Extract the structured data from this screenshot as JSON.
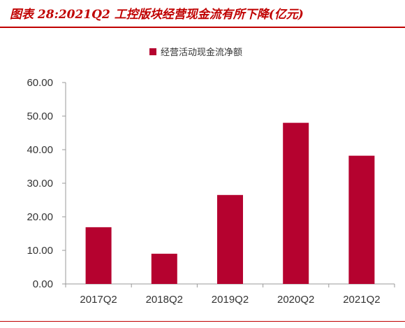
{
  "header": {
    "title": "图表 28:2021Q2 工控版块经营现金流有所下降(亿元)"
  },
  "chart_data": {
    "type": "bar",
    "categories": [
      "2017Q2",
      "2018Q2",
      "2019Q2",
      "2020Q2",
      "2021Q2"
    ],
    "series": [
      {
        "name": "经营活动现金流净额",
        "values": [
          16.9,
          9.0,
          26.5,
          48.0,
          38.2
        ],
        "color": "#b5022f"
      }
    ],
    "ylim": [
      0,
      60
    ],
    "yticks": [
      "0.00",
      "10.00",
      "20.00",
      "30.00",
      "40.00",
      "50.00",
      "60.00"
    ],
    "legend_position": "top-center",
    "grid": false
  }
}
